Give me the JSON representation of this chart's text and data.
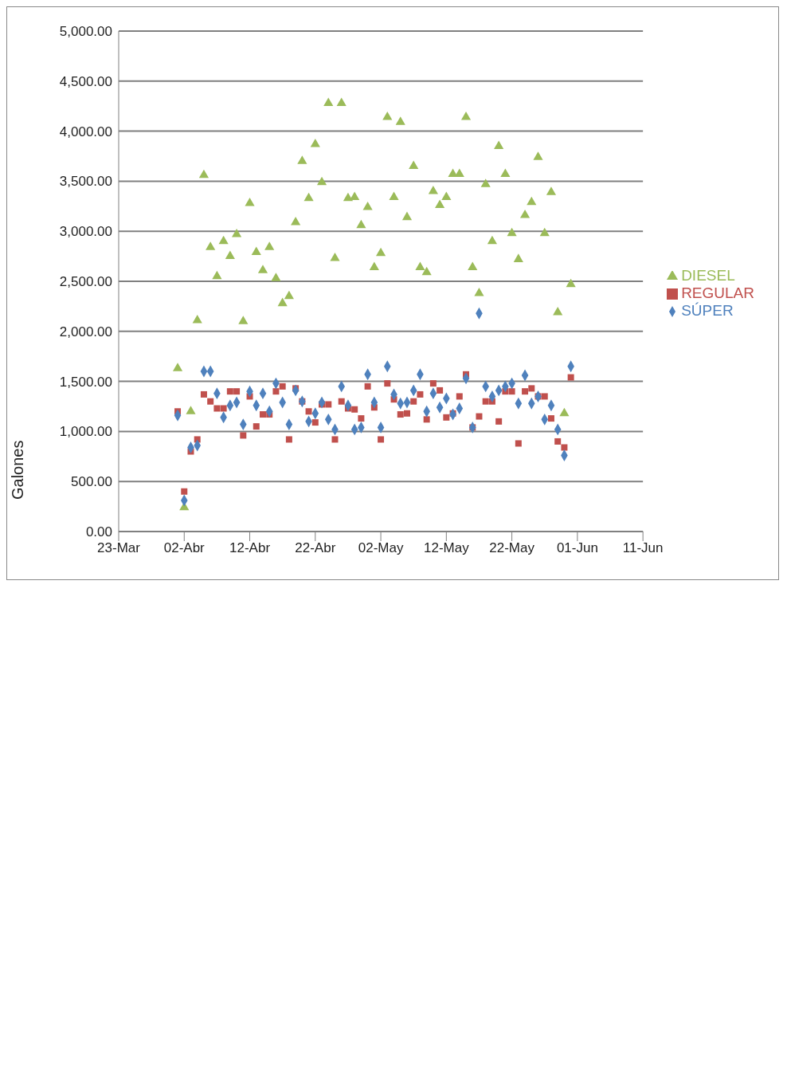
{
  "chart_data": {
    "type": "scatter",
    "ylabel": "Galones",
    "x": [
      "--04-01",
      "--04-02",
      "--04-03",
      "--04-04",
      "--04-05",
      "--04-06",
      "--04-07",
      "--04-08",
      "--04-09",
      "--04-10",
      "--04-11",
      "--04-12",
      "--04-13",
      "--04-14",
      "--04-15",
      "--04-16",
      "--04-17",
      "--04-18",
      "--04-19",
      "--04-20",
      "--04-21",
      "--04-22",
      "--04-23",
      "--04-24",
      "--04-25",
      "--04-26",
      "--04-27",
      "--04-28",
      "--04-29",
      "--04-30",
      "--05-01",
      "--05-02",
      "--05-03",
      "--05-04",
      "--05-05",
      "--05-06",
      "--05-07",
      "--05-08",
      "--05-09",
      "--05-10",
      "--05-11",
      "--05-12",
      "--05-13",
      "--05-14",
      "--05-15",
      "--05-16",
      "--05-17",
      "--05-18",
      "--05-19",
      "--05-20",
      "--05-21",
      "--05-22",
      "--05-23",
      "--05-24",
      "--05-25",
      "--05-26",
      "--05-27",
      "--05-28",
      "--05-29",
      "--05-30",
      "--05-31"
    ],
    "series": [
      {
        "name": "SÚPER",
        "color": "#4f81bd",
        "marker": "diamond",
        "values": [
          1160,
          310,
          840,
          860,
          1600,
          1600,
          1380,
          1140,
          1260,
          1290,
          1070,
          1400,
          1260,
          1380,
          1200,
          1480,
          1290,
          1070,
          1410,
          1300,
          1100,
          1180,
          1290,
          1120,
          1020,
          1450,
          1260,
          1020,
          1040,
          1570,
          1290,
          1040,
          1650,
          1370,
          1280,
          1290,
          1410,
          1570,
          1200,
          1380,
          1240,
          1330,
          1170,
          1230,
          1530,
          1040,
          2180,
          1450,
          1350,
          1410,
          1450,
          1480,
          1280,
          1560,
          1280,
          1350,
          1120,
          1260,
          1020,
          760,
          1650
        ]
      },
      {
        "name": "REGULAR",
        "color": "#c0504d",
        "marker": "square",
        "values": [
          1200,
          400,
          800,
          920,
          1370,
          1300,
          1230,
          1230,
          1400,
          1400,
          960,
          1350,
          1050,
          1170,
          1170,
          1400,
          1450,
          920,
          1430,
          1300,
          1200,
          1090,
          1270,
          1270,
          920,
          1300,
          1230,
          1220,
          1130,
          1450,
          1240,
          920,
          1480,
          1320,
          1170,
          1180,
          1300,
          1370,
          1120,
          1480,
          1410,
          1140,
          1180,
          1350,
          1570,
          1040,
          1150,
          1300,
          1300,
          1100,
          1400,
          1400,
          880,
          1400,
          1430,
          1350,
          1350,
          1130,
          900,
          840,
          1540
        ]
      },
      {
        "name": "DIESEL",
        "color": "#9bbb59",
        "marker": "triangle",
        "values": [
          1630,
          240,
          1200,
          2110,
          3560,
          2840,
          2550,
          2900,
          2750,
          2970,
          2100,
          3280,
          2790,
          2610,
          2840,
          2530,
          2280,
          2350,
          3090,
          3700,
          3330,
          3870,
          3490,
          4280,
          2730,
          4280,
          3330,
          3340,
          3060,
          3240,
          2640,
          2780,
          4140,
          3340,
          4090,
          3140,
          3650,
          2640,
          2590,
          3400,
          3260,
          3340,
          3570,
          3570,
          4140,
          2640,
          2380,
          3470,
          2900,
          3850,
          3570,
          2980,
          2720,
          3160,
          3290,
          3740,
          2980,
          3390,
          2190,
          1180,
          2470
        ]
      }
    ],
    "xlim": [
      "--03-23",
      "--06-11"
    ],
    "xticks": [
      {
        "value": "--03-23",
        "label": "23-Mar"
      },
      {
        "value": "--04-02",
        "label": "02-Abr"
      },
      {
        "value": "--04-12",
        "label": "12-Abr"
      },
      {
        "value": "--04-22",
        "label": "22-Abr"
      },
      {
        "value": "--05-02",
        "label": "02-May"
      },
      {
        "value": "--05-12",
        "label": "12-May"
      },
      {
        "value": "--05-22",
        "label": "22-May"
      },
      {
        "value": "--06-01",
        "label": "01-Jun"
      },
      {
        "value": "--06-11",
        "label": "11-Jun"
      }
    ],
    "ylim": [
      0,
      5000
    ],
    "yticks": [
      {
        "value": 0,
        "label": "0.00"
      },
      {
        "value": 500,
        "label": "500.00"
      },
      {
        "value": 1000,
        "label": "1,000.00"
      },
      {
        "value": 1500,
        "label": "1,500.00"
      },
      {
        "value": 2000,
        "label": "2,000.00"
      },
      {
        "value": 2500,
        "label": "2,500.00"
      },
      {
        "value": 3000,
        "label": "3,000.00"
      },
      {
        "value": 3500,
        "label": "3,500.00"
      },
      {
        "value": 4000,
        "label": "4,000.00"
      },
      {
        "value": 4500,
        "label": "4,500.00"
      },
      {
        "value": 5000,
        "label": "5,000.00"
      }
    ],
    "grid": "y",
    "legend": "right"
  }
}
